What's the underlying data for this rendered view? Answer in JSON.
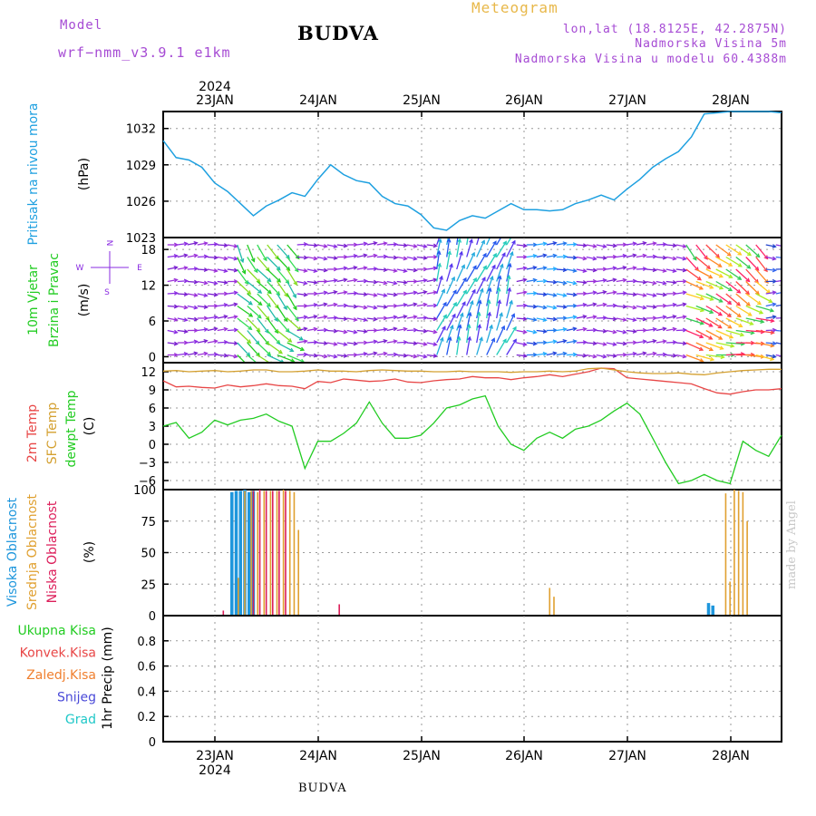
{
  "header": {
    "model_label": "Model",
    "model_name": "wrf−nmm_v3.9.1  e1km",
    "title": "BUDVA",
    "product": "Meteogram",
    "lonlat": "lon,lat (18.8125E, 42.2875N)",
    "elevation": "Nadmorska Visina 5m",
    "model_elevation": "Nadmorska Visina u modelu 60.4388m"
  },
  "footer": {
    "station": "BUDVA",
    "credit": "made by Angel"
  },
  "colors": {
    "pressure": "#1ea0e0",
    "temp2m": "#e84646",
    "sfc_temp": "#d4a030",
    "dewpt": "#22cc22",
    "high_cloud": "#1e96dc",
    "mid_cloud": "#e0a030",
    "low_cloud": "#dc1e5a",
    "wind_arrow": "#8a2be2",
    "grid": "#999999"
  },
  "chart_data": [
    {
      "type": "line",
      "panel": "pressure",
      "ylabel_lines": [
        "Pritisak na nivou mora"
      ],
      "unit": "(hPa)",
      "ylim": [
        1023,
        1033.4
      ],
      "yticks": [
        "1023",
        "1026",
        "1029",
        "1032"
      ],
      "x": [
        0,
        3,
        6,
        9,
        12,
        15,
        18,
        21,
        24,
        27,
        30,
        33,
        36,
        39,
        42,
        45,
        48,
        51,
        54,
        57,
        60,
        63,
        66,
        69,
        72,
        75,
        78,
        81,
        84,
        87,
        90,
        93,
        96,
        99,
        102,
        105,
        108,
        111,
        114,
        117,
        120,
        123,
        126,
        129,
        132,
        135,
        138,
        141,
        144
      ],
      "values": [
        1031,
        1029.6,
        1029.4,
        1028.8,
        1027.5,
        1026.8,
        1025.8,
        1024.8,
        1025.6,
        1026.1,
        1026.7,
        1026.4,
        1027.8,
        1029,
        1028.2,
        1027.7,
        1027.5,
        1026.4,
        1025.8,
        1025.6,
        1024.9,
        1023.8,
        1023.6,
        1024.4,
        1024.8,
        1024.6,
        1025.2,
        1025.8,
        1025.3,
        1025.3,
        1025.2,
        1025.3,
        1025.8,
        1026.1,
        1026.5,
        1026.1,
        1027.0,
        1027.8,
        1028.8,
        1029.5,
        1030.1,
        1031.3,
        1033.2,
        1033.3,
        1033.4,
        1033.4,
        1033.4,
        1033.4,
        1033.3
      ],
      "grid": true
    },
    {
      "type": "barb",
      "panel": "wind",
      "ylabel_lines": [
        "10m Vjetar",
        "Brzina i Pravac"
      ],
      "unit": "(m/s)",
      "ylim": [
        -1,
        20
      ],
      "yticks": [
        "0",
        "6",
        "12",
        "18"
      ],
      "compass": {
        "n": "N",
        "s": "S",
        "e": "E",
        "w": "W"
      },
      "grid": true
    },
    {
      "type": "line",
      "panel": "temperature",
      "ylabel_lines": [
        "2m Temp",
        "SFC Temp",
        "dewpt Temp"
      ],
      "unit": "(C)",
      "ylim": [
        -7.5,
        13.5
      ],
      "yticks": [
        "-6",
        "-3",
        "0",
        "3",
        "6",
        "9",
        "12"
      ],
      "x": [
        0,
        3,
        6,
        9,
        12,
        15,
        18,
        21,
        24,
        27,
        30,
        33,
        36,
        39,
        42,
        45,
        48,
        51,
        54,
        57,
        60,
        63,
        66,
        69,
        72,
        75,
        78,
        81,
        84,
        87,
        90,
        93,
        96,
        99,
        102,
        105,
        108,
        111,
        114,
        117,
        120,
        123,
        126,
        129,
        132,
        135,
        138,
        141,
        144
      ],
      "series": [
        {
          "name": "2m Temp",
          "color": "#e84646",
          "values": [
            10.5,
            9.5,
            9.6,
            9.4,
            9.3,
            9.8,
            9.5,
            9.7,
            10.0,
            9.7,
            9.6,
            9.2,
            10.4,
            10.2,
            10.8,
            10.6,
            10.4,
            10.5,
            10.8,
            10.3,
            10.2,
            10.5,
            10.7,
            10.8,
            11.2,
            11.0,
            11.0,
            10.7,
            11.0,
            11.2,
            11.5,
            11.2,
            11.6,
            12.0,
            12.6,
            12.5,
            11.0,
            10.8,
            10.6,
            10.4,
            10.2,
            10.0,
            9.2,
            8.5,
            8.3,
            8.7,
            9.0,
            9.0,
            9.2
          ]
        },
        {
          "name": "SFC Temp",
          "color": "#d4a030",
          "values": [
            12.1,
            12.2,
            12.0,
            12.1,
            12.2,
            12.0,
            12.1,
            12.3,
            12.3,
            12.0,
            12.0,
            12.1,
            12.3,
            12.1,
            12.1,
            12.0,
            12.2,
            12.3,
            12.2,
            12.1,
            12.1,
            12.0,
            12.0,
            12.1,
            12.0,
            12.0,
            12.0,
            11.9,
            12.0,
            12.0,
            12.1,
            12.0,
            12.1,
            12.5,
            12.6,
            12.3,
            12.0,
            11.8,
            11.7,
            11.7,
            11.8,
            11.6,
            11.5,
            11.8,
            12.0,
            12.2,
            12.3,
            12.4,
            12.4
          ]
        },
        {
          "name": "dewpt Temp",
          "color": "#22cc22",
          "values": [
            3.0,
            3.6,
            1.0,
            2.0,
            4.0,
            3.2,
            4.0,
            4.3,
            5.0,
            3.8,
            3.0,
            -4.0,
            0.5,
            0.5,
            1.8,
            3.5,
            7.0,
            3.5,
            1.0,
            1.0,
            1.5,
            3.5,
            6.0,
            6.5,
            7.5,
            8.0,
            3.0,
            0.0,
            -1.0,
            1.0,
            2.0,
            1.0,
            2.5,
            3.0,
            4.0,
            5.5,
            6.8,
            5.0,
            1.0,
            -3.0,
            -6.5,
            -6.0,
            -5.0,
            -6.0,
            -6.5,
            0.5,
            -1.0,
            -2.0,
            1.5
          ]
        }
      ],
      "grid": true
    },
    {
      "type": "bar",
      "panel": "clouds",
      "ylabel_lines": [
        "Visoka Oblacnost",
        "Srednja Oblacnost",
        "Niska Oblacnost"
      ],
      "unit": "(%)",
      "ylim": [
        0,
        100
      ],
      "yticks": [
        "0",
        "25",
        "50",
        "75",
        "100"
      ],
      "series": [
        {
          "name": "Visoka Oblacnost",
          "color": "#1e96dc",
          "x": [
            16,
            17,
            18,
            19,
            20,
            21,
            127,
            128
          ],
          "values": [
            98,
            99,
            99,
            100,
            98,
            99,
            10,
            8
          ]
        },
        {
          "name": "Srednja Oblacnost",
          "color": "#e0a030",
          "x": [
            17.5,
            19,
            20.5,
            22,
            23.5,
            25,
            26.5,
            28,
            29.5,
            30.5,
            31.5,
            90,
            91,
            131,
            132,
            133,
            134,
            135,
            136
          ],
          "values": [
            30,
            99,
            99,
            98,
            99,
            99,
            99,
            100,
            99,
            98,
            68,
            22,
            15,
            97,
            27,
            100,
            99,
            98,
            75
          ],
          "note": ""
        },
        {
          "name": "Niska Oblacnost",
          "color": "#dc1e5a",
          "x": [
            14,
            21,
            22.5,
            24,
            25.5,
            27,
            28.5,
            41
          ],
          "values": [
            4,
            99,
            100,
            99,
            99,
            99,
            99,
            9
          ]
        }
      ],
      "grid": true
    },
    {
      "type": "line",
      "panel": "precipitation",
      "legend": [
        "Ukupna Kisa",
        "Konvek.Kisa",
        "Zaledj.Kisa",
        "Snijeg",
        "Grad"
      ],
      "legend_colors": [
        "#22cc22",
        "#e84646",
        "#f08030",
        "#4a4ad8",
        "#20c8c8"
      ],
      "ylabel_lines": [
        "1hr Precip (mm)"
      ],
      "ylim": [
        0,
        1
      ],
      "yticks": [
        "0",
        "0.2",
        "0.4",
        "0.6",
        "0.8"
      ],
      "values": [],
      "grid": true
    }
  ],
  "time_axis": {
    "year": "2024",
    "days": [
      "23JAN",
      "24JAN",
      "25JAN",
      "26JAN",
      "27JAN",
      "28JAN"
    ]
  }
}
